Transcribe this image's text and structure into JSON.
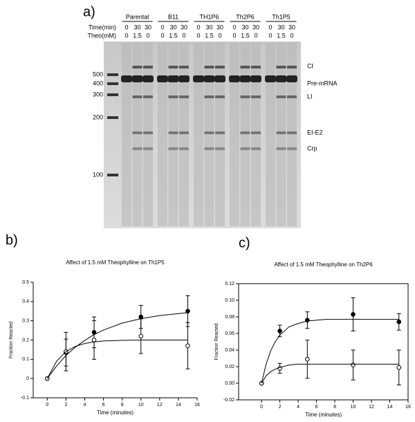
{
  "gel": {
    "panel_label": "a)",
    "groups": [
      "Parental",
      "B11",
      "TH1P6",
      "Th2P6",
      "Th1P5"
    ],
    "row_labels": [
      "Time(min)",
      "Theo(mM)"
    ],
    "time": [
      "0",
      "30",
      "30",
      "0",
      "30",
      "30",
      "0",
      "30",
      "30",
      "0",
      "30",
      "30",
      "0",
      "30",
      "30"
    ],
    "theo": [
      "0",
      "1.5",
      "0",
      "0",
      "1.5",
      "0",
      "0",
      "1.5",
      "0",
      "0",
      "1.5",
      "0",
      "0",
      "1.5",
      "0"
    ],
    "markers": [
      "500",
      "400",
      "300",
      "200",
      "100"
    ],
    "bands": [
      "CI",
      "Pre-mRNA",
      "LI",
      "EI-E2",
      "Crp"
    ]
  },
  "chart_data": [
    {
      "type": "scatter",
      "panel_label": "b)",
      "title": "Affect of 1.5 mM Theophylline on Th1P5",
      "x_label": "Time (minutes)",
      "y_label": "Fraction Reacted",
      "xlim": [
        -1.5,
        16
      ],
      "ylim": [
        -0.1,
        0.5
      ],
      "xticks": [
        0,
        2,
        4,
        6,
        8,
        10,
        12,
        14,
        16
      ],
      "yticks": [
        -0.1,
        0,
        0.1,
        0.2,
        0.3,
        0.4,
        0.5
      ],
      "frame": false,
      "series": [
        {
          "marker": "filled",
          "color": "#000000",
          "x": [
            0,
            2,
            5,
            10,
            15
          ],
          "values": [
            0,
            0.135,
            0.24,
            0.32,
            0.35
          ],
          "errors": [
            0,
            0.07,
            0.08,
            0.06,
            0.08
          ]
        },
        {
          "marker": "open",
          "color": "#000000",
          "x": [
            0,
            2,
            5,
            10,
            15
          ],
          "values": [
            0,
            0.14,
            0.2,
            0.22,
            0.17
          ],
          "errors": [
            0,
            0.1,
            0.1,
            0.09,
            0.12
          ]
        },
        {
          "marker": "curve",
          "color": "#000000",
          "x": [
            0,
            1,
            2,
            3,
            4,
            5,
            6,
            8,
            10,
            12,
            15
          ],
          "values": [
            0,
            0.065,
            0.12,
            0.163,
            0.198,
            0.228,
            0.252,
            0.288,
            0.311,
            0.327,
            0.342
          ]
        },
        {
          "marker": "curve",
          "color": "#000000",
          "x": [
            0,
            1,
            2,
            3,
            4,
            5,
            6,
            8,
            10,
            12,
            15
          ],
          "values": [
            0,
            0.09,
            0.14,
            0.167,
            0.182,
            0.19,
            0.195,
            0.198,
            0.2,
            0.2,
            0.2
          ]
        }
      ]
    },
    {
      "type": "scatter",
      "panel_label": "c)",
      "title": "Affect of 1.5 mM Theophylline on Th2P6",
      "x_label": "Time (minutes)",
      "y_label": "Fraction Reacted",
      "xlim": [
        -2.5,
        16
      ],
      "ylim": [
        -0.02,
        0.12
      ],
      "xticks": [
        0,
        2,
        4,
        6,
        8,
        10,
        12,
        14,
        16
      ],
      "yticks": [
        {
          "value": -0.02,
          "label": "-0.02"
        },
        {
          "value": 0,
          "label": "0.00"
        },
        {
          "value": 0.02,
          "label": "0.02"
        },
        {
          "value": 0.04,
          "label": "0.04"
        },
        {
          "value": 0.06,
          "label": "0.06"
        },
        {
          "value": 0.08,
          "label": "0.08"
        },
        {
          "value": 0.1,
          "label": "0.10"
        },
        {
          "value": 0.12,
          "label": "0.12"
        }
      ],
      "frame": true,
      "series": [
        {
          "marker": "filled",
          "color": "#000000",
          "x": [
            0,
            2,
            5,
            10,
            15
          ],
          "values": [
            0,
            0.063,
            0.076,
            0.083,
            0.074
          ],
          "errors": [
            0,
            0.007,
            0.01,
            0.02,
            0.01
          ]
        },
        {
          "marker": "open",
          "color": "#000000",
          "x": [
            0,
            2,
            5,
            10,
            15
          ],
          "values": [
            0,
            0.018,
            0.029,
            0.022,
            0.019
          ],
          "errors": [
            0,
            0.006,
            0.023,
            0.018,
            0.021
          ]
        },
        {
          "marker": "curve",
          "color": "#000000",
          "x": [
            0,
            0.5,
            1,
            1.5,
            2,
            3,
            4,
            5,
            7,
            10,
            15
          ],
          "values": [
            0,
            0.023,
            0.039,
            0.05,
            0.058,
            0.068,
            0.072,
            0.075,
            0.077,
            0.077,
            0.077
          ]
        },
        {
          "marker": "curve",
          "color": "#000000",
          "x": [
            0,
            0.5,
            1,
            1.5,
            2,
            3,
            4,
            5,
            7,
            10,
            15
          ],
          "values": [
            0,
            0.009,
            0.014,
            0.017,
            0.019,
            0.022,
            0.023,
            0.023,
            0.023,
            0.023,
            0.023
          ]
        }
      ]
    }
  ]
}
